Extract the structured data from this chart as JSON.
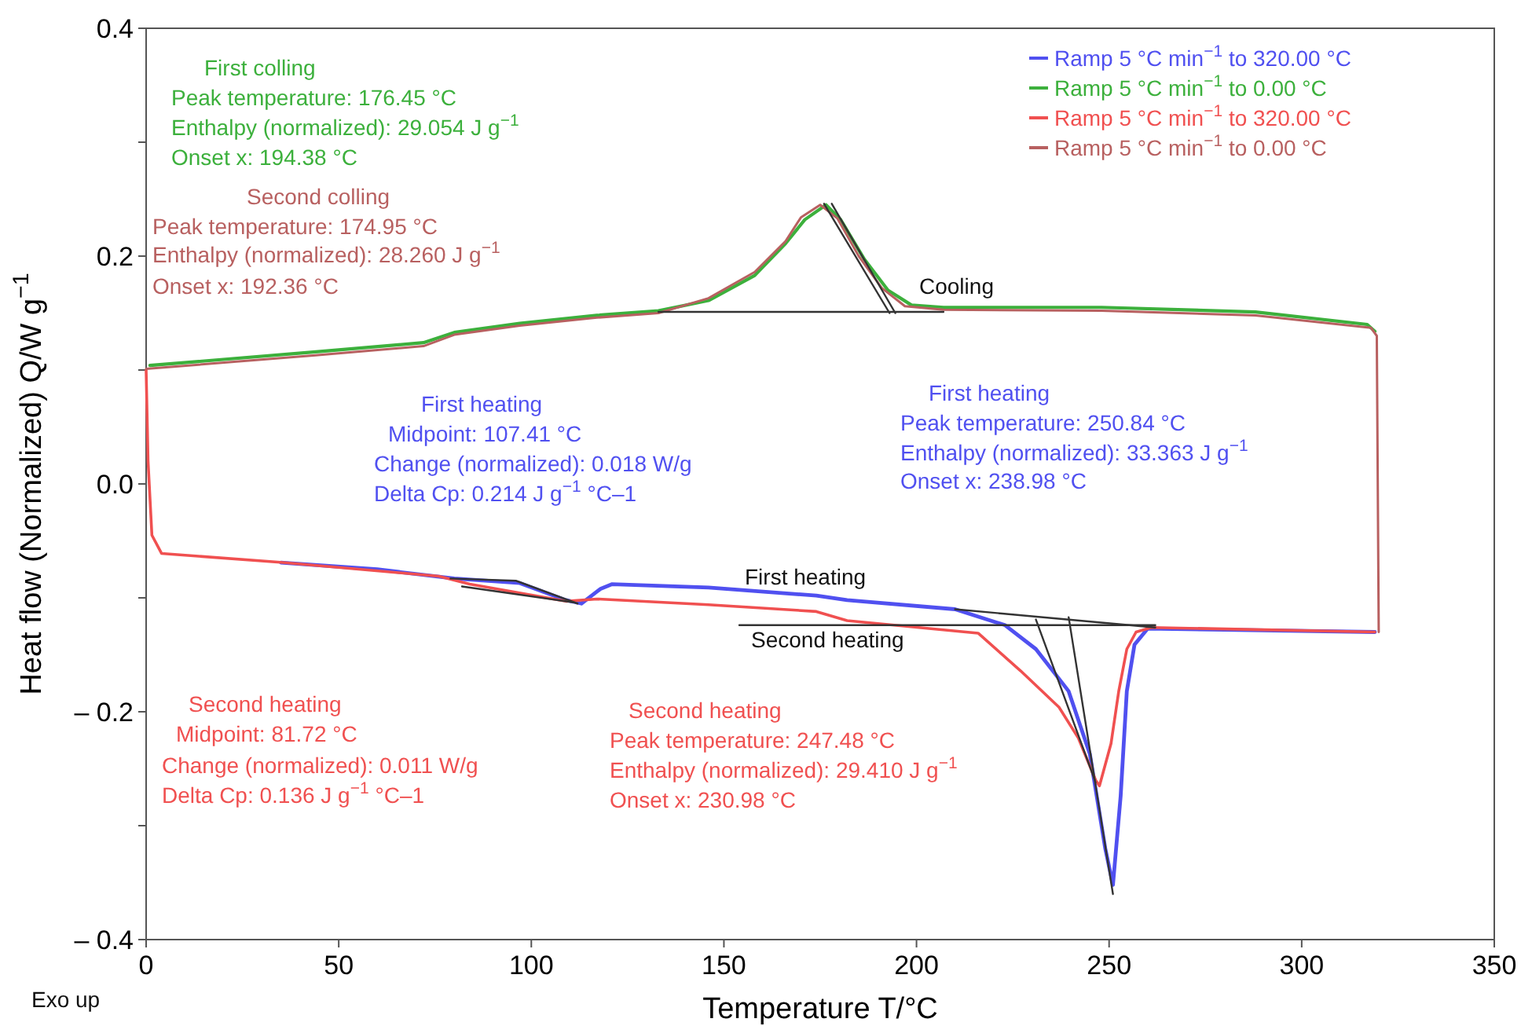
{
  "chart_data": {
    "type": "line",
    "xlabel": "Temperature T/°C",
    "ylabel": "Heat flow (Normalized) Q/W g$^{−1}$",
    "xlim": [
      0,
      350
    ],
    "xticks": [
      0,
      50,
      100,
      150,
      200,
      250,
      300,
      350
    ],
    "ylim": [
      -0.4,
      0.4
    ],
    "yticks": [
      {
        "value": -0.4,
        "label": "– 0.4"
      },
      {
        "value": -0.3,
        "label": null
      },
      {
        "value": -0.2,
        "label": "– 0.2"
      },
      {
        "value": -0.1,
        "label": null
      },
      {
        "value": 0,
        "label": "0.0"
      },
      {
        "value": 0.1,
        "label": null
      },
      {
        "value": 0.2,
        "label": "0.2"
      },
      {
        "value": 0.3,
        "label": null
      },
      {
        "value": 0.4,
        "label": "0.4"
      }
    ],
    "grid": false,
    "legend": "top right",
    "marker": "none",
    "line_style": "solid",
    "series": [
      {
        "name": "Ramp 5 °C min$^{−1}$ to 320.00 °C",
        "color": "#5050f0",
        "x": [
          35,
          60,
          80,
          97,
          109,
          113,
          118,
          121,
          146,
          174,
          182,
          210,
          223,
          231,
          239.5,
          245,
          249,
          251,
          253,
          254.6,
          256.6,
          260,
          280,
          319
        ],
        "values": [
          -0.069,
          -0.075,
          -0.083,
          -0.087,
          -0.102,
          -0.105,
          -0.092,
          -0.088,
          -0.091,
          -0.098,
          -0.102,
          -0.11,
          -0.124,
          -0.145,
          -0.182,
          -0.237,
          -0.32,
          -0.352,
          -0.274,
          -0.182,
          -0.141,
          -0.127,
          -0.128,
          -0.13
        ]
      },
      {
        "name": "Ramp 5 °C min$^{−1}$ to 0.00 °C",
        "color": "#3cb03c",
        "x": [
          319,
          317,
          288,
          248,
          207,
          198.7,
          192.6,
          186.5,
          180.3,
          176.5,
          171,
          166,
          158,
          146,
          133,
          117,
          97,
          80,
          72,
          44,
          1
        ],
        "values": [
          0.134,
          0.14,
          0.151,
          0.155,
          0.155,
          0.157,
          0.17,
          0.197,
          0.232,
          0.245,
          0.232,
          0.211,
          0.183,
          0.161,
          0.152,
          0.148,
          0.141,
          0.133,
          0.124,
          0.116,
          0.104
        ]
      },
      {
        "name": "Ramp 5 °C min$^{−1}$ to 320.00 °C",
        "color": "#f05050",
        "x": [
          0,
          0.5,
          1.5,
          4,
          35.5,
          76,
          84,
          109,
          117,
          146,
          174,
          182,
          216,
          227,
          237,
          242,
          246.5,
          247.5,
          250.5,
          252.5,
          254.6,
          257,
          261,
          290,
          319
        ],
        "values": [
          0.1,
          0.02,
          -0.045,
          -0.061,
          -0.069,
          -0.081,
          -0.088,
          -0.103,
          -0.101,
          -0.106,
          -0.112,
          -0.12,
          -0.131,
          -0.164,
          -0.196,
          -0.223,
          -0.26,
          -0.265,
          -0.228,
          -0.182,
          -0.145,
          -0.13,
          -0.126,
          -0.128,
          -0.13
        ]
      },
      {
        "name": "Ramp 5 °C min$^{−1}$ to 0.00 °C",
        "color": "#b86060",
        "x": [
          320,
          319.5,
          318,
          288,
          248,
          207,
          197,
          191,
          185,
          179.5,
          175,
          170,
          166,
          158,
          146,
          133,
          117,
          97,
          80,
          72,
          44,
          0
        ],
        "values": [
          -0.13,
          0.13,
          0.137,
          0.148,
          0.152,
          0.153,
          0.156,
          0.172,
          0.2,
          0.233,
          0.245,
          0.234,
          0.213,
          0.186,
          0.163,
          0.15,
          0.146,
          0.139,
          0.131,
          0.121,
          0.113,
          0.101
        ]
      },
      {
        "color": "#333333",
        "x": [
          133,
          207
        ],
        "values": [
          0.151,
          0.151
        ]
      },
      {
        "color": "#333333",
        "x": [
          176,
          193
        ],
        "values": [
          0.246,
          0.15
        ]
      },
      {
        "color": "#333333",
        "x": [
          178,
          194.5
        ],
        "values": [
          0.246,
          0.15
        ]
      },
      {
        "color": "#333333",
        "x": [
          210,
          262
        ],
        "values": [
          -0.11,
          -0.126
        ]
      },
      {
        "color": "#333333",
        "x": [
          154,
          262
        ],
        "values": [
          -0.124,
          -0.124
        ]
      },
      {
        "color": "#333333",
        "x": [
          231,
          246.5
        ],
        "values": [
          -0.119,
          -0.262
        ]
      },
      {
        "color": "#333333",
        "x": [
          239.5,
          251
        ],
        "values": [
          -0.117,
          -0.36
        ]
      },
      {
        "color": "#333333",
        "x": [
          79,
          96,
          112
        ],
        "values": [
          -0.083,
          -0.085,
          -0.105
        ]
      },
      {
        "color": "#333333",
        "x": [
          82,
          111
        ],
        "values": [
          -0.09,
          -0.104
        ]
      }
    ],
    "annotations": [
      "First colling",
      "Peak temperature: 176.45 °C",
      "Enthalpy (normalized): 29.054 J g$^{−1}$",
      "Onset x: 194.38 °C",
      "Second colling",
      "Peak temperature: 174.95 °C",
      "Enthalpy (normalized): 28.260 J g$^{−1}$",
      "Onset x: 192.36 °C",
      "First heating",
      "Midpoint: 107.41 °C",
      "Change (normalized): 0.018 W/g",
      "Delta Cp: 0.214 J g$^{−1}$ °C–1",
      "First heating",
      "Peak temperature: 250.84 °C",
      "Enthalpy (normalized): 33.363 J g$^{−1}$",
      "Onset x: 238.98 °C",
      "Second heating",
      "Midpoint: 81.72 °C",
      "Change (normalized): 0.011 W/g",
      "Delta Cp: 0.136 J g$^{−1}$ °C–1",
      "Second heating",
      "Peak temperature: 247.48 °C",
      "Enthalpy (normalized): 29.410 J g$^{−1}$",
      "Onset x: 230.98 °C",
      "Cooling",
      "First heating",
      "Second heating",
      "Exo up"
    ]
  }
}
